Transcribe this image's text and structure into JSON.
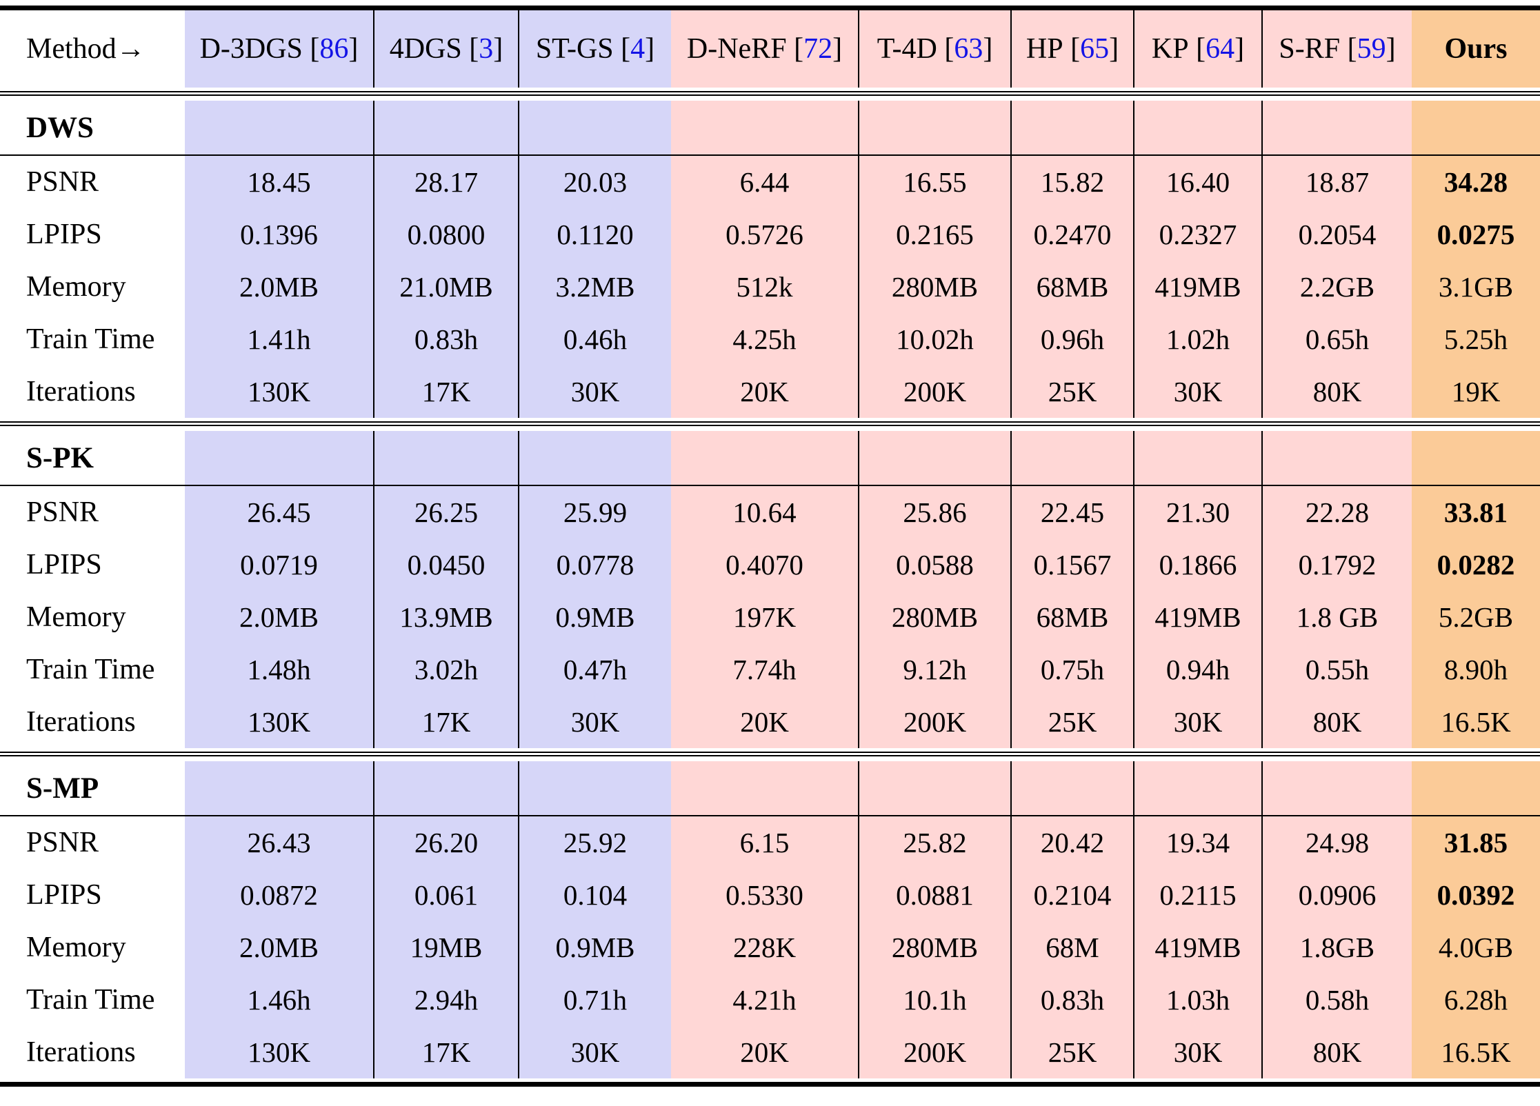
{
  "colors": {
    "gaussian_group_bg": "#d6d6f8",
    "nerf_group_bg": "#ffd7d6",
    "ours_bg": "#fbcb98",
    "citation_blue": "#1414e6",
    "rule_black": "#000000"
  },
  "citation_brackets": [
    "[",
    "]"
  ],
  "header": {
    "label": "Method→",
    "methods": [
      {
        "name": "D-3DGS",
        "cite": "86",
        "group": "gs"
      },
      {
        "name": "4DGS",
        "cite": "3",
        "group": "gs"
      },
      {
        "name": "ST-GS",
        "cite": "4",
        "group": "gs"
      },
      {
        "name": "D-NeRF",
        "cite": "72",
        "group": "nerf"
      },
      {
        "name": "T-4D",
        "cite": "63",
        "group": "nerf"
      },
      {
        "name": "HP",
        "cite": "65",
        "group": "nerf"
      },
      {
        "name": "KP",
        "cite": "64",
        "group": "nerf"
      },
      {
        "name": "S-RF",
        "cite": "59",
        "group": "nerf"
      },
      {
        "name": "Ours",
        "cite": "",
        "group": "ours"
      }
    ]
  },
  "sections": [
    {
      "name": "DWS",
      "rows": [
        {
          "label": "PSNR",
          "bold_ours": true,
          "values": [
            "18.45",
            "28.17",
            "20.03",
            "6.44",
            "16.55",
            "15.82",
            "16.40",
            "18.87",
            "34.28"
          ]
        },
        {
          "label": "LPIPS",
          "bold_ours": true,
          "values": [
            "0.1396",
            "0.0800",
            "0.1120",
            "0.5726",
            "0.2165",
            "0.2470",
            "0.2327",
            "0.2054",
            "0.0275"
          ]
        },
        {
          "label": "Memory",
          "bold_ours": false,
          "values": [
            "2.0MB",
            "21.0MB",
            "3.2MB",
            "512k",
            "280MB",
            "68MB",
            "419MB",
            "2.2GB",
            "3.1GB"
          ]
        },
        {
          "label": "Train Time",
          "bold_ours": false,
          "values": [
            "1.41h",
            "0.83h",
            "0.46h",
            "4.25h",
            "10.02h",
            "0.96h",
            "1.02h",
            "0.65h",
            "5.25h"
          ]
        },
        {
          "label": "Iterations",
          "bold_ours": false,
          "values": [
            "130K",
            "17K",
            "30K",
            "20K",
            "200K",
            "25K",
            "30K",
            "80K",
            "19K"
          ]
        }
      ]
    },
    {
      "name": "S-PK",
      "rows": [
        {
          "label": "PSNR",
          "bold_ours": true,
          "values": [
            "26.45",
            "26.25",
            "25.99",
            "10.64",
            "25.86",
            "22.45",
            "21.30",
            "22.28",
            "33.81"
          ]
        },
        {
          "label": "LPIPS",
          "bold_ours": true,
          "values": [
            "0.0719",
            "0.0450",
            "0.0778",
            "0.4070",
            "0.0588",
            "0.1567",
            "0.1866",
            "0.1792",
            "0.0282"
          ]
        },
        {
          "label": "Memory",
          "bold_ours": false,
          "values": [
            "2.0MB",
            "13.9MB",
            "0.9MB",
            "197K",
            "280MB",
            "68MB",
            "419MB",
            "1.8 GB",
            "5.2GB"
          ]
        },
        {
          "label": "Train Time",
          "bold_ours": false,
          "values": [
            "1.48h",
            "3.02h",
            "0.47h",
            "7.74h",
            "9.12h",
            "0.75h",
            "0.94h",
            "0.55h",
            "8.90h"
          ]
        },
        {
          "label": "Iterations",
          "bold_ours": false,
          "values": [
            "130K",
            "17K",
            "30K",
            "20K",
            "200K",
            "25K",
            "30K",
            "80K",
            "16.5K"
          ]
        }
      ]
    },
    {
      "name": "S-MP",
      "rows": [
        {
          "label": "PSNR",
          "bold_ours": true,
          "values": [
            "26.43",
            "26.20",
            "25.92",
            "6.15",
            "25.82",
            "20.42",
            "19.34",
            "24.98",
            "31.85"
          ]
        },
        {
          "label": "LPIPS",
          "bold_ours": true,
          "values": [
            "0.0872",
            "0.061",
            "0.104",
            "0.5330",
            "0.0881",
            "0.2104",
            "0.2115",
            "0.0906",
            "0.0392"
          ]
        },
        {
          "label": "Memory",
          "bold_ours": false,
          "values": [
            "2.0MB",
            "19MB",
            "0.9MB",
            "228K",
            "280MB",
            "68M",
            "419MB",
            "1.8GB",
            "4.0GB"
          ]
        },
        {
          "label": "Train Time",
          "bold_ours": false,
          "values": [
            "1.46h",
            "2.94h",
            "0.71h",
            "4.21h",
            "10.1h",
            "0.83h",
            "1.03h",
            "0.58h",
            "6.28h"
          ]
        },
        {
          "label": "Iterations",
          "bold_ours": false,
          "values": [
            "130K",
            "17K",
            "30K",
            "20K",
            "200K",
            "25K",
            "30K",
            "80K",
            "16.5K"
          ]
        }
      ]
    }
  ]
}
